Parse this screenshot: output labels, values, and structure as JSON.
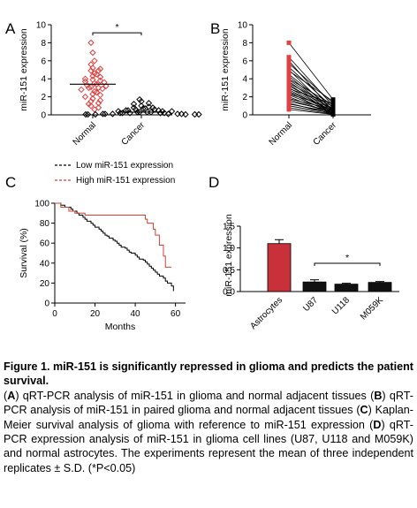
{
  "figure": {
    "panels": {
      "A": {
        "letter": "A",
        "ylabel": "miR-151 expression",
        "sig_mark": "*"
      },
      "B": {
        "letter": "B",
        "ylabel": "miR-151 expression"
      },
      "C": {
        "letter": "C",
        "ylabel": "Survival (%)",
        "xlabel": "Months"
      },
      "D": {
        "letter": "D",
        "ylabel": "miR-151 expression",
        "sig_mark": "*"
      }
    },
    "colors": {
      "normal": "#e04040",
      "cancer": "#000000",
      "high": "#d04030",
      "low": "#000000",
      "astro_bar": "#c8313a",
      "bar_dark": "#111111"
    }
  },
  "caption": {
    "title": "Figure 1. miR-151 is significantly repressed in glioma and predicts the patient survival.",
    "parts": [
      {
        "tag": "A",
        "text": "qRT-PCR analysis of miR-151 in glioma and normal adjacent tissues"
      },
      {
        "tag": "B",
        "text": "qRT-PCR analysis of miR-151 in paired glioma and normal adjacent tissues"
      },
      {
        "tag": "C",
        "text": "Kaplan-Meier survival analysis of glioma with reference to miR-151 expression"
      },
      {
        "tag": "D",
        "text": "qRT-PCR expression analysis of miR-151 in glioma cell lines (U87, U118 and M059K) and normal astrocytes. The experiments represent the mean of three independent replicates ± S.D. (*P<0.05)"
      }
    ]
  },
  "chart_data": [
    {
      "panel": "A",
      "type": "scatter",
      "ylabel": "miR-151 expression",
      "ylim": [
        0,
        10
      ],
      "yticks": [
        0,
        2,
        4,
        6,
        8,
        10
      ],
      "categories": [
        "Normal",
        "Cancer"
      ],
      "series": [
        {
          "name": "Normal",
          "values": [
            8.0,
            6.9,
            6.0,
            5.6,
            5.2,
            5.1,
            4.9,
            4.9,
            4.6,
            4.5,
            4.3,
            4.2,
            4.0,
            3.9,
            3.8,
            3.7,
            3.6,
            3.5,
            3.4,
            3.3,
            3.2,
            3.1,
            3.0,
            3.0,
            2.9,
            2.8,
            2.6,
            2.5,
            2.3,
            2.2,
            2.0,
            1.8,
            1.6,
            1.5,
            1.3,
            1.2,
            1.0,
            0.8,
            0.6
          ],
          "mean": 3.4
        },
        {
          "name": "Cancer",
          "values": [
            1.7,
            1.5,
            1.3,
            1.2,
            1.0,
            0.9,
            0.8,
            0.8,
            0.7,
            0.7,
            0.6,
            0.6,
            0.5,
            0.5,
            0.5,
            0.4,
            0.4,
            0.4,
            0.3,
            0.3,
            0.3,
            0.3,
            0.2,
            0.2,
            0.2,
            0.2,
            0.2,
            0.1,
            0.1,
            0.1,
            0.1,
            0.1,
            0.1,
            0.05,
            0.05,
            0.05,
            0.05,
            0.05,
            0.05
          ],
          "mean": 0.3
        }
      ],
      "significance": "*"
    },
    {
      "panel": "B",
      "type": "line",
      "ylabel": "miR-151 expression",
      "ylim": [
        0,
        10
      ],
      "yticks": [
        0,
        2,
        4,
        6,
        8,
        10
      ],
      "categories": [
        "Normal",
        "Cancer"
      ],
      "pairs": [
        [
          8.0,
          1.7
        ],
        [
          6.4,
          1.0
        ],
        [
          6.0,
          0.4
        ],
        [
          5.7,
          1.3
        ],
        [
          5.3,
          0.8
        ],
        [
          5.0,
          0.2
        ],
        [
          4.9,
          1.5
        ],
        [
          4.5,
          0.6
        ],
        [
          4.3,
          0.3
        ],
        [
          4.0,
          1.1
        ],
        [
          3.9,
          0.5
        ],
        [
          3.7,
          0.2
        ],
        [
          3.5,
          0.9
        ],
        [
          3.4,
          0.1
        ],
        [
          3.2,
          0.7
        ],
        [
          3.0,
          0.3
        ],
        [
          2.9,
          1.2
        ],
        [
          2.8,
          0.2
        ],
        [
          2.6,
          0.5
        ],
        [
          2.5,
          0.1
        ],
        [
          2.3,
          0.8
        ],
        [
          2.2,
          0.3
        ],
        [
          2.0,
          0.1
        ],
        [
          1.8,
          0.6
        ],
        [
          1.7,
          0.2
        ],
        [
          1.5,
          0.4
        ],
        [
          1.3,
          0.1
        ],
        [
          1.2,
          0.3
        ],
        [
          1.0,
          0.2
        ],
        [
          0.8,
          0.1
        ],
        [
          0.6,
          0.05
        ]
      ]
    },
    {
      "panel": "C",
      "type": "line",
      "xlabel": "Months",
      "ylabel": "Survival (%)",
      "xlim": [
        0,
        65
      ],
      "ylim": [
        0,
        100
      ],
      "xticks": [
        0,
        20,
        40,
        60
      ],
      "yticks": [
        0,
        20,
        40,
        60,
        80,
        100
      ],
      "legend": "top",
      "series": [
        {
          "name": "Low miR-151 expression",
          "x": [
            0,
            3,
            5,
            8,
            9,
            11,
            12,
            14,
            15,
            16,
            18,
            19,
            20,
            22,
            23,
            24,
            25,
            26,
            27,
            29,
            30,
            31,
            32,
            33,
            35,
            36,
            37,
            38,
            40,
            41,
            42,
            44,
            45,
            46,
            47,
            48,
            49,
            50,
            51,
            52,
            54,
            55,
            56,
            58,
            59
          ],
          "y": [
            100,
            98,
            96,
            94,
            92,
            90,
            88,
            86,
            84,
            82,
            80,
            78,
            76,
            74,
            72,
            70,
            68,
            67,
            65,
            63,
            62,
            60,
            58,
            56,
            55,
            53,
            51,
            50,
            48,
            46,
            44,
            43,
            41,
            39,
            37,
            35,
            33,
            31,
            29,
            27,
            25,
            22,
            20,
            17,
            12
          ]
        },
        {
          "name": "High miR-151 expression",
          "x": [
            0,
            3,
            7,
            10,
            15,
            43,
            45,
            46,
            49,
            50,
            52,
            54,
            55,
            58
          ],
          "y": [
            100,
            96,
            92,
            90,
            88,
            88,
            84,
            80,
            74,
            68,
            58,
            47,
            36,
            36
          ]
        }
      ]
    },
    {
      "panel": "D",
      "type": "bar",
      "ylabel": "miR-151 expression",
      "ylim": [
        0,
        1.5
      ],
      "yticks": [
        0.0,
        0.5,
        1.0,
        1.5
      ],
      "categories": [
        "Astrocytes",
        "U87",
        "U118",
        "M059K"
      ],
      "values": [
        1.1,
        0.22,
        0.17,
        0.21
      ],
      "errors": [
        0.09,
        0.05,
        0.02,
        0.02
      ],
      "significance": "*"
    }
  ]
}
